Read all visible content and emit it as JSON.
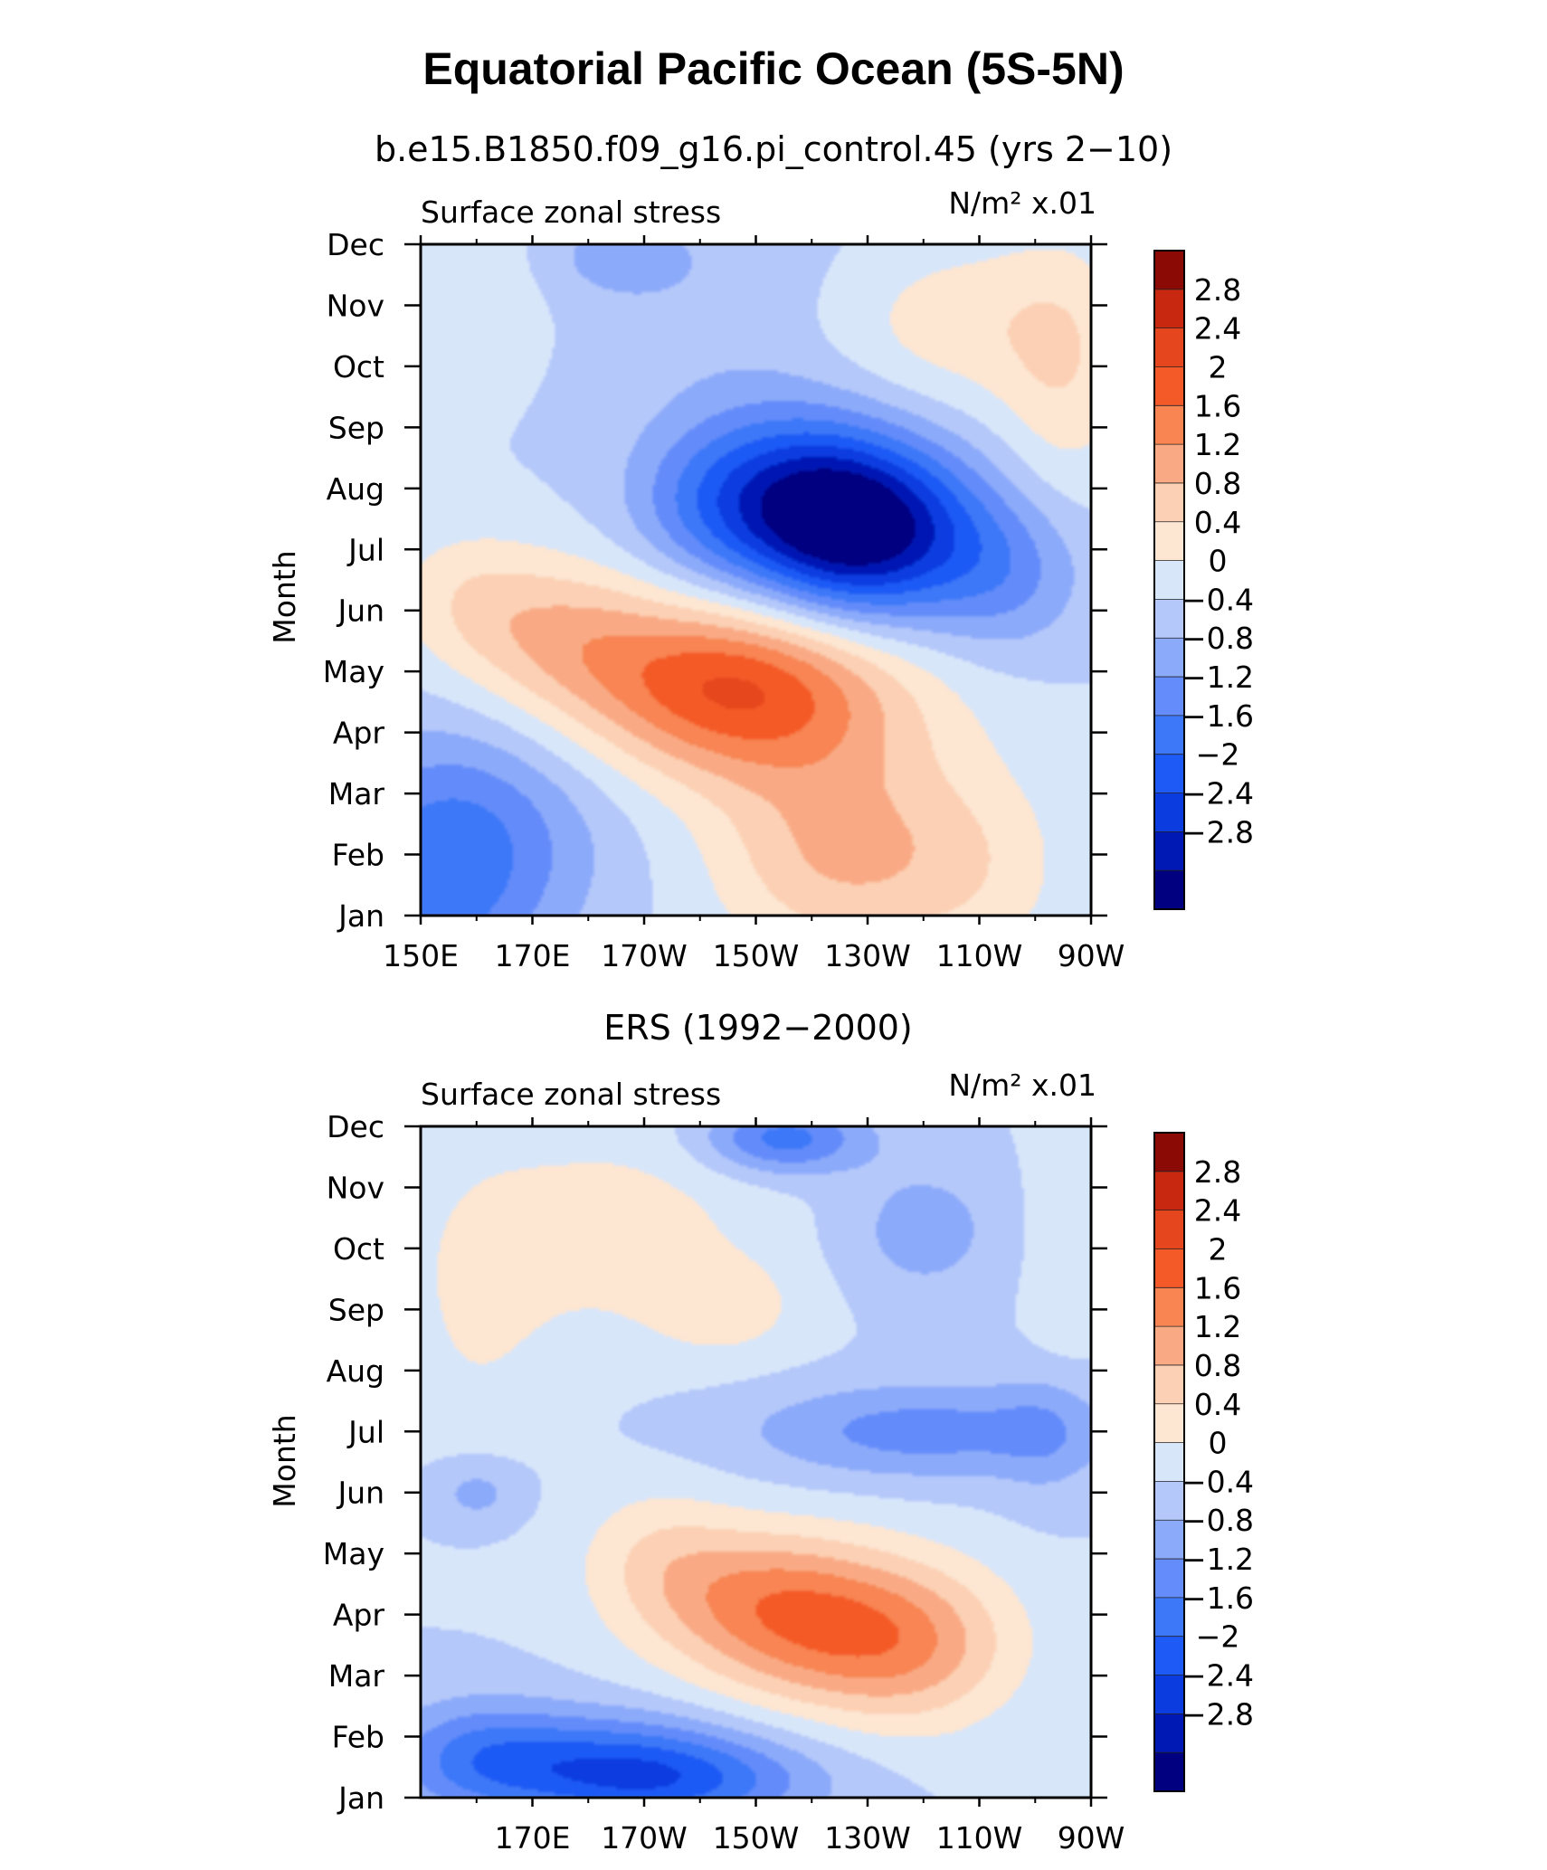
{
  "title": "Equatorial Pacific Ocean (5S-5N)",
  "colormap": {
    "levels": [
      -2.8,
      -2.4,
      -2,
      -1.6,
      -1.2,
      -0.8,
      -0.4,
      0,
      0.4,
      0.8,
      1.2,
      1.6,
      2,
      2.4,
      2.8
    ],
    "level_labels": [
      "2.8",
      "2.4",
      "2",
      "1.6",
      "1.2",
      "0.8",
      "0.4",
      "0",
      "−0.4",
      "−0.8",
      "−1.2",
      "−1.6",
      "−2",
      "−2.4",
      "−2.8"
    ],
    "colors": [
      "#000080",
      "#0019B4",
      "#0A3CE0",
      "#1E5AF5",
      "#3C78F8",
      "#648CFA",
      "#8CAAFA",
      "#B4C8FA",
      "#D8E6FA",
      "#FDE6D2",
      "#FCD0B4",
      "#F9AA85",
      "#F88552",
      "#F45A28",
      "#E6461E",
      "#C8280F",
      "#8C0A05"
    ]
  },
  "chart_data": [
    {
      "type": "heatmap",
      "subtitle": "b.e15.B1850.f09_g16.pi_control.45 (yrs 2−10)",
      "left_label": "Surface zonal stress",
      "units_label": "N/m² x.01",
      "ylabel": "Month",
      "x_range_deg_east": [
        150,
        270
      ],
      "x_ticks": [
        {
          "value": 150,
          "label": "150E"
        },
        {
          "value": 170,
          "label": "170E"
        },
        {
          "value": 190,
          "label": "170W"
        },
        {
          "value": 210,
          "label": "150W"
        },
        {
          "value": 230,
          "label": "130W"
        },
        {
          "value": 250,
          "label": "110W"
        },
        {
          "value": 270,
          "label": "90W"
        }
      ],
      "y_ticks": [
        "Jan",
        "Feb",
        "Mar",
        "Apr",
        "May",
        "Jun",
        "Jul",
        "Aug",
        "Sep",
        "Oct",
        "Nov",
        "Dec"
      ],
      "features": [
        {
          "lon": 152,
          "month": 1.5,
          "value": -1.2,
          "sx": 14,
          "sy": 1.5
        },
        {
          "lon": 165,
          "month": 2.5,
          "value": -0.6,
          "sx": 16,
          "sy": 1.3
        },
        {
          "lon": 225,
          "month": 2.0,
          "value": 1.2,
          "sx": 16,
          "sy": 1.2
        },
        {
          "lon": 250,
          "month": 1.8,
          "value": 0.5,
          "sx": 12,
          "sy": 1.2
        },
        {
          "lon": 210,
          "month": 4.3,
          "value": 1.3,
          "sx": 22,
          "sy": 1.0
        },
        {
          "lon": 205,
          "month": 5.0,
          "value": 1.3,
          "sx": 18,
          "sy": 0.9
        },
        {
          "lon": 175,
          "month": 5.6,
          "value": 1.0,
          "sx": 14,
          "sy": 0.9
        },
        {
          "lon": 158,
          "month": 6.3,
          "value": 0.5,
          "sx": 10,
          "sy": 0.8
        },
        {
          "lon": 230,
          "month": 7.3,
          "value": -2.8,
          "sx": 14,
          "sy": 1.0
        },
        {
          "lon": 215,
          "month": 7.9,
          "value": -1.6,
          "sx": 14,
          "sy": 1.0
        },
        {
          "lon": 255,
          "month": 6.6,
          "value": -0.8,
          "sx": 10,
          "sy": 0.9
        },
        {
          "lon": 200,
          "month": 7.7,
          "value": -0.5,
          "sx": 10,
          "sy": 0.9
        },
        {
          "lon": 210,
          "month": 10.8,
          "value": -0.3,
          "sx": 22,
          "sy": 1.5
        },
        {
          "lon": 185,
          "month": 11.8,
          "value": -0.5,
          "sx": 10,
          "sy": 0.5
        },
        {
          "lon": 245,
          "month": 10.7,
          "value": 0.7,
          "sx": 18,
          "sy": 1.0
        },
        {
          "lon": 265,
          "month": 9.8,
          "value": 0.6,
          "sx": 8,
          "sy": 1.5
        },
        {
          "lon": 158,
          "month": 11.2,
          "value": 0.4,
          "sx": 10,
          "sy": 1.0
        }
      ]
    },
    {
      "type": "heatmap",
      "subtitle": "ERS (1992−2000)",
      "left_label": "Surface zonal stress",
      "units_label": "N/m² x.01",
      "ylabel": "Month",
      "x_range_deg_east": [
        150,
        270
      ],
      "x_ticks": [
        {
          "value": 170,
          "label": "170E"
        },
        {
          "value": 190,
          "label": "170W"
        },
        {
          "value": 210,
          "label": "150W"
        },
        {
          "value": 230,
          "label": "130W"
        },
        {
          "value": 250,
          "label": "110W"
        },
        {
          "value": 270,
          "label": "90W"
        }
      ],
      "y_ticks": [
        "Jan",
        "Feb",
        "Mar",
        "Apr",
        "May",
        "Jun",
        "Jul",
        "Aug",
        "Sep",
        "Oct",
        "Nov",
        "Dec"
      ],
      "features": [
        {
          "lon": 180,
          "month": 1.6,
          "value": -1.4,
          "sx": 22,
          "sy": 0.6
        },
        {
          "lon": 195,
          "month": 1.2,
          "value": -1.1,
          "sx": 18,
          "sy": 0.5
        },
        {
          "lon": 160,
          "month": 1.7,
          "value": -0.6,
          "sx": 10,
          "sy": 0.7
        },
        {
          "lon": 225,
          "month": 3.6,
          "value": 1.5,
          "sx": 18,
          "sy": 0.9
        },
        {
          "lon": 210,
          "month": 4.4,
          "value": 1.1,
          "sx": 16,
          "sy": 0.8
        },
        {
          "lon": 192,
          "month": 5.1,
          "value": 0.5,
          "sx": 10,
          "sy": 0.8
        },
        {
          "lon": 240,
          "month": 3.4,
          "value": 0.6,
          "sx": 12,
          "sy": 1.0
        },
        {
          "lon": 240,
          "month": 7.0,
          "value": -1.0,
          "sx": 22,
          "sy": 0.55
        },
        {
          "lon": 262,
          "month": 7.0,
          "value": -0.4,
          "sx": 6,
          "sy": 0.8
        },
        {
          "lon": 160,
          "month": 6.0,
          "value": -0.6,
          "sx": 6,
          "sy": 0.4
        },
        {
          "lon": 215,
          "month": 11.8,
          "value": -1.4,
          "sx": 10,
          "sy": 0.4
        },
        {
          "lon": 240,
          "month": 10.3,
          "value": -0.6,
          "sx": 10,
          "sy": 0.8
        },
        {
          "lon": 185,
          "month": 10.3,
          "value": 0.6,
          "sx": 18,
          "sy": 1.2
        },
        {
          "lon": 160,
          "month": 9.0,
          "value": 0.4,
          "sx": 10,
          "sy": 1.8
        },
        {
          "lon": 205,
          "month": 9.0,
          "value": 0.5,
          "sx": 10,
          "sy": 0.6
        },
        {
          "lon": 265,
          "month": 10.0,
          "value": 0.3,
          "sx": 5,
          "sy": 1.5
        }
      ]
    }
  ]
}
